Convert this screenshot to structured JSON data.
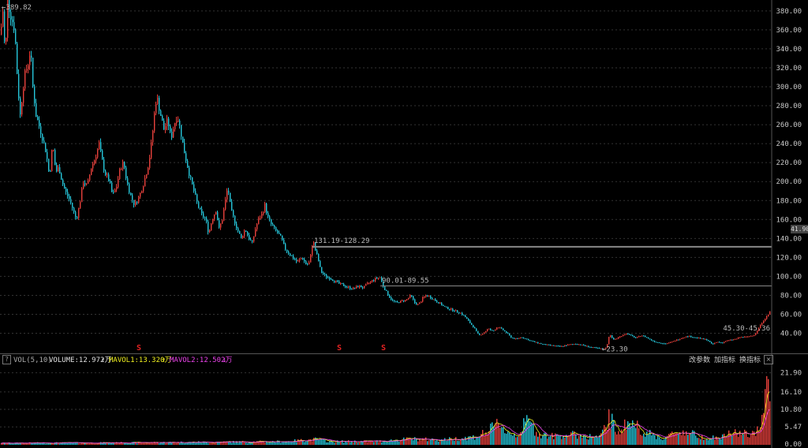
{
  "volume_panel": {
    "indicator_name": "VOL(5,10)",
    "volume_label": "VOLUME:12.972万",
    "volume_arrow": "↑",
    "mavol1_label": "MAVOL1:13.320万",
    "mavol1_arrow": "↑",
    "mavol2_label": "MAVOL2:12.502万",
    "mavol2_arrow": "↓",
    "help": "?",
    "buttons": {
      "edit_params": "改参数",
      "add_indicator": "加指标",
      "change_indicator": "换指标",
      "close": "×"
    }
  },
  "price_tag": "41.90",
  "signals": [
    "S",
    "S",
    "S"
  ],
  "colors": {
    "up": "#e8413c",
    "down": "#26c6da",
    "mavol1": "#f0f020",
    "mavol2": "#ee44ee",
    "grid": "#333333",
    "annotation_line": "#888888"
  },
  "chart_data": {
    "type": "candlestick",
    "price_axis": {
      "ticks": [
        380,
        360,
        340,
        320,
        300,
        280,
        260,
        240,
        220,
        200,
        180,
        160,
        140,
        120,
        100,
        80,
        60,
        40
      ],
      "tick_labels": [
        "380.00",
        "360.00",
        "340.00",
        "320.00",
        "300.00",
        "280.00",
        "260.00",
        "240.00",
        "220.00",
        "200.00",
        "180.00",
        "160.00",
        "140.00",
        "120.00",
        "100.00",
        "80.00",
        "60.00",
        "40.00"
      ],
      "range": [
        23,
        390
      ]
    },
    "volume_axis": {
      "ticks": [
        21.9,
        16.1,
        10.8,
        5.47,
        0
      ],
      "tick_labels": [
        "21.90",
        "16.10",
        "10.80",
        "5.47",
        "0.00"
      ],
      "range": [
        0,
        23
      ]
    },
    "annotations": {
      "high": "←389.82",
      "low": "←23.30",
      "range1": "131.19-128.29",
      "range2": "90.01-89.55",
      "last": "45.30-45.36"
    },
    "levels": [
      131.19,
      90.01
    ],
    "price_path": [
      [
        0,
        355
      ],
      [
        3,
        380
      ],
      [
        6,
        330
      ],
      [
        9,
        389.82
      ],
      [
        13,
        375
      ],
      [
        18,
        360
      ],
      [
        22,
        300
      ],
      [
        25,
        270
      ],
      [
        30,
        310
      ],
      [
        35,
        325
      ],
      [
        38,
        340
      ],
      [
        41,
        300
      ],
      [
        45,
        270
      ],
      [
        52,
        250
      ],
      [
        58,
        230
      ],
      [
        62,
        205
      ],
      [
        66,
        240
      ],
      [
        70,
        210
      ],
      [
        74,
        215
      ],
      [
        78,
        200
      ],
      [
        82,
        190
      ],
      [
        88,
        180
      ],
      [
        92,
        170
      ],
      [
        96,
        160
      ],
      [
        100,
        175
      ],
      [
        105,
        200
      ],
      [
        110,
        195
      ],
      [
        115,
        215
      ],
      [
        120,
        225
      ],
      [
        125,
        240
      ],
      [
        128,
        225
      ],
      [
        132,
        210
      ],
      [
        138,
        200
      ],
      [
        142,
        185
      ],
      [
        147,
        195
      ],
      [
        152,
        215
      ],
      [
        156,
        220
      ],
      [
        160,
        200
      ],
      [
        165,
        185
      ],
      [
        170,
        175
      ],
      [
        176,
        185
      ],
      [
        182,
        200
      ],
      [
        188,
        220
      ],
      [
        192,
        245
      ],
      [
        196,
        280
      ],
      [
        198,
        290
      ],
      [
        203,
        270
      ],
      [
        207,
        255
      ],
      [
        212,
        265
      ],
      [
        216,
        245
      ],
      [
        220,
        260
      ],
      [
        224,
        270
      ],
      [
        228,
        255
      ],
      [
        232,
        235
      ],
      [
        236,
        220
      ],
      [
        240,
        205
      ],
      [
        245,
        190
      ],
      [
        250,
        175
      ],
      [
        255,
        165
      ],
      [
        260,
        160
      ],
      [
        264,
        145
      ],
      [
        268,
        160
      ],
      [
        273,
        170
      ],
      [
        277,
        150
      ],
      [
        281,
        160
      ],
      [
        285,
        180
      ],
      [
        288,
        195
      ],
      [
        292,
        170
      ],
      [
        296,
        160
      ],
      [
        300,
        150
      ],
      [
        305,
        140
      ],
      [
        310,
        150
      ],
      [
        315,
        140
      ],
      [
        319,
        135
      ],
      [
        323,
        150
      ],
      [
        327,
        160
      ],
      [
        331,
        165
      ],
      [
        335,
        175
      ],
      [
        339,
        162
      ],
      [
        343,
        155
      ],
      [
        347,
        150
      ],
      [
        352,
        145
      ],
      [
        356,
        140
      ],
      [
        360,
        130
      ],
      [
        365,
        125
      ],
      [
        370,
        120
      ],
      [
        376,
        115
      ],
      [
        382,
        120
      ],
      [
        388,
        112
      ],
      [
        392,
        115
      ],
      [
        396,
        140
      ],
      [
        398,
        130
      ],
      [
        402,
        120
      ],
      [
        406,
        105
      ],
      [
        412,
        100
      ],
      [
        418,
        98
      ],
      [
        424,
        95
      ],
      [
        430,
        92
      ],
      [
        436,
        90
      ],
      [
        442,
        88
      ],
      [
        448,
        87
      ],
      [
        454,
        90
      ],
      [
        460,
        88
      ],
      [
        465,
        92
      ],
      [
        470,
        95
      ],
      [
        476,
        98
      ],
      [
        481,
        99
      ],
      [
        485,
        90
      ],
      [
        490,
        82
      ],
      [
        496,
        75
      ],
      [
        502,
        72
      ],
      [
        508,
        74
      ],
      [
        514,
        75
      ],
      [
        520,
        80
      ],
      [
        525,
        72
      ],
      [
        530,
        70
      ],
      [
        535,
        77
      ],
      [
        540,
        80
      ],
      [
        545,
        78
      ],
      [
        550,
        75
      ],
      [
        556,
        72
      ],
      [
        562,
        68
      ],
      [
        568,
        66
      ],
      [
        575,
        64
      ],
      [
        582,
        62
      ],
      [
        588,
        58
      ],
      [
        594,
        52
      ],
      [
        600,
        46
      ],
      [
        606,
        38
      ],
      [
        612,
        40
      ],
      [
        618,
        45
      ],
      [
        624,
        42
      ],
      [
        630,
        47
      ],
      [
        636,
        44
      ],
      [
        642,
        40
      ],
      [
        648,
        35
      ],
      [
        654,
        34
      ],
      [
        660,
        36
      ],
      [
        666,
        34
      ],
      [
        672,
        32
      ],
      [
        680,
        30
      ],
      [
        690,
        28
      ],
      [
        700,
        27
      ],
      [
        710,
        26
      ],
      [
        720,
        28
      ],
      [
        730,
        29
      ],
      [
        740,
        27
      ],
      [
        750,
        25
      ],
      [
        758,
        24
      ],
      [
        764,
        23.3
      ],
      [
        768,
        25
      ],
      [
        772,
        40
      ],
      [
        776,
        33
      ],
      [
        782,
        35
      ],
      [
        788,
        38
      ],
      [
        794,
        40
      ],
      [
        800,
        37
      ],
      [
        806,
        35
      ],
      [
        812,
        38
      ],
      [
        818,
        36
      ],
      [
        824,
        33
      ],
      [
        830,
        31
      ],
      [
        836,
        30
      ],
      [
        842,
        29
      ],
      [
        848,
        30
      ],
      [
        854,
        32
      ],
      [
        860,
        34
      ],
      [
        866,
        36
      ],
      [
        872,
        37
      ],
      [
        878,
        36
      ],
      [
        884,
        35
      ],
      [
        890,
        34
      ],
      [
        896,
        33
      ],
      [
        902,
        28
      ],
      [
        908,
        31
      ],
      [
        914,
        30
      ],
      [
        920,
        32
      ],
      [
        926,
        33
      ],
      [
        932,
        34
      ],
      [
        938,
        36
      ],
      [
        944,
        36
      ],
      [
        950,
        37
      ],
      [
        956,
        39
      ],
      [
        960,
        44
      ],
      [
        964,
        50
      ],
      [
        968,
        55
      ],
      [
        972,
        58
      ],
      [
        976,
        65
      ]
    ],
    "volume_path": [
      [
        0,
        0.5
      ],
      [
        60,
        0.6
      ],
      [
        120,
        0.6
      ],
      [
        180,
        0.7
      ],
      [
        240,
        0.8
      ],
      [
        300,
        0.9
      ],
      [
        360,
        1.0
      ],
      [
        400,
        1.7
      ],
      [
        420,
        1.0
      ],
      [
        480,
        1.1
      ],
      [
        520,
        1.8
      ],
      [
        560,
        1.5
      ],
      [
        600,
        2.4
      ],
      [
        615,
        3.8
      ],
      [
        625,
        5.2
      ],
      [
        632,
        7.2
      ],
      [
        640,
        4.0
      ],
      [
        655,
        3.0
      ],
      [
        668,
        7.6
      ],
      [
        680,
        3.5
      ],
      [
        700,
        2.6
      ],
      [
        720,
        3.2
      ],
      [
        740,
        2.7
      ],
      [
        760,
        2.2
      ],
      [
        772,
        8.5
      ],
      [
        780,
        4.0
      ],
      [
        798,
        7.0
      ],
      [
        810,
        5.0
      ],
      [
        820,
        3.5
      ],
      [
        840,
        2.0
      ],
      [
        860,
        4.2
      ],
      [
        875,
        3.5
      ],
      [
        890,
        2.4
      ],
      [
        910,
        2.0
      ],
      [
        930,
        3.8
      ],
      [
        945,
        3.3
      ],
      [
        955,
        3.0
      ],
      [
        965,
        9.0
      ],
      [
        970,
        21.9
      ],
      [
        973,
        16.1
      ],
      [
        976,
        12.9
      ]
    ],
    "signal_positions": [
      176,
      430,
      486
    ]
  }
}
